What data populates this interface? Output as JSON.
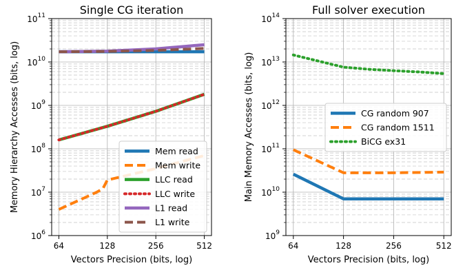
{
  "chart_data": [
    {
      "type": "line",
      "title": "Single CG iteration",
      "xlabel": "Vectors Precision (bits, log)",
      "ylabel": "Memory Hierarchy Accesses (bits, log)",
      "xscale": "log2",
      "yscale": "log10",
      "xticks": [
        64,
        128,
        256,
        512
      ],
      "xlim": [
        64,
        512
      ],
      "ylim_exp": [
        6,
        11
      ],
      "grid": true,
      "legend_position": "lower-right",
      "series": [
        {
          "name": "Mem read",
          "color": "#1f77b4",
          "style": "solid",
          "x": [
            64,
            128,
            256,
            512
          ],
          "y": [
            17200000000.0,
            17200000000.0,
            17200000000.0,
            17200000000.0
          ]
        },
        {
          "name": "Mem write",
          "color": "#ff7f0e",
          "style": "dashed",
          "x": [
            64,
            110,
            120,
            128,
            256,
            512
          ],
          "y": [
            4000000.0,
            10000000.0,
            12000000.0,
            19000000.0,
            35000000.0,
            70000000.0
          ]
        },
        {
          "name": "LLC read",
          "color": "#2ca02c",
          "style": "solid",
          "x": [
            64,
            128,
            256,
            512
          ],
          "y": [
            160000000.0,
            330000000.0,
            730000000.0,
            1800000000.0
          ]
        },
        {
          "name": "LLC write",
          "color": "#d62728",
          "style": "dotted",
          "x": [
            64,
            128,
            256,
            512
          ],
          "y": [
            160000000.0,
            330000000.0,
            730000000.0,
            1800000000.0
          ]
        },
        {
          "name": "L1 read",
          "color": "#9467bd",
          "style": "solid",
          "x": [
            64,
            128,
            256,
            512
          ],
          "y": [
            17200000000.0,
            17800000000.0,
            20000000000.0,
            25000000000.0
          ]
        },
        {
          "name": "L1 write",
          "color": "#8c564b",
          "style": "dashed",
          "x": [
            64,
            128,
            256,
            512
          ],
          "y": [
            17200000000.0,
            17500000000.0,
            18500000000.0,
            20500000000.0
          ]
        }
      ]
    },
    {
      "type": "line",
      "title": "Full solver execution",
      "xlabel": "Vectors Precision (bits, log)",
      "ylabel": "Main Memory Accesses (bits, log)",
      "xscale": "log2",
      "yscale": "log10",
      "xticks": [
        64,
        128,
        256,
        512
      ],
      "xlim": [
        64,
        512
      ],
      "ylim_exp": [
        9,
        14
      ],
      "grid": true,
      "legend_position": "center-right",
      "series": [
        {
          "name": "CG random 907",
          "color": "#1f77b4",
          "style": "solid",
          "x": [
            64,
            128,
            256,
            512
          ],
          "y": [
            26000000000.0,
            7000000000.0,
            7000000000.0,
            7000000000.0
          ]
        },
        {
          "name": "CG random 1511",
          "color": "#ff7f0e",
          "style": "dashed",
          "x": [
            64,
            128,
            256,
            512
          ],
          "y": [
            95000000000.0,
            28000000000.0,
            28000000000.0,
            29000000000.0
          ]
        },
        {
          "name": "BiCG ex31",
          "color": "#2ca02c",
          "style": "dotted",
          "x": [
            64,
            128,
            181,
            256,
            362,
            512
          ],
          "y": [
            14500000000000.0,
            7600000000000.0,
            6800000000000.0,
            6300000000000.0,
            5900000000000.0,
            5400000000000.0
          ]
        }
      ]
    }
  ]
}
